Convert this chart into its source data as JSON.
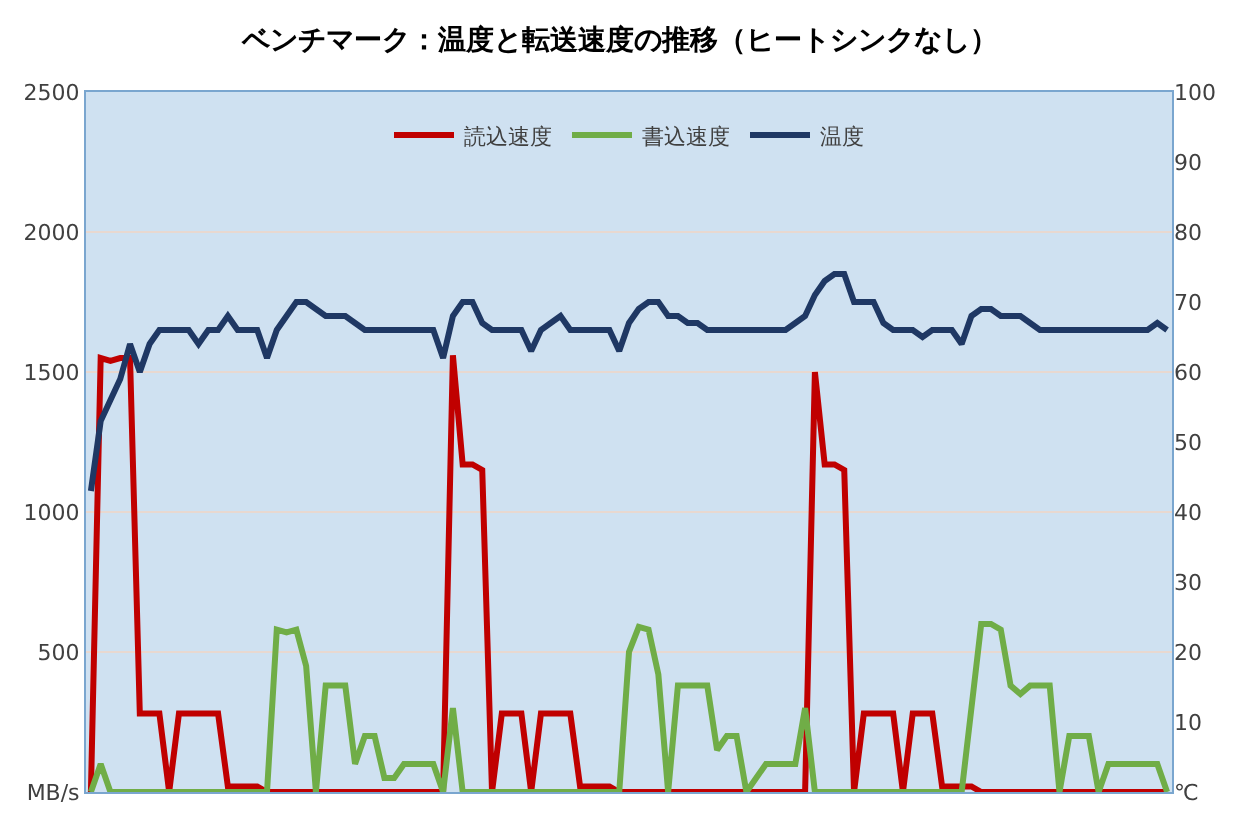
{
  "chart_data": {
    "type": "line",
    "title": "ベンチマーク：温度と転送速度の推移（ヒートシンクなし）",
    "categories": [
      null,
      null,
      null,
      null,
      null,
      null,
      null,
      null,
      null,
      null,
      null,
      null,
      null,
      null,
      null,
      null,
      null,
      null,
      null,
      null,
      null,
      null,
      null,
      null,
      null,
      null,
      null,
      null,
      null,
      null,
      null,
      null,
      null,
      null,
      null,
      null,
      null,
      null,
      null,
      null,
      null,
      null,
      null,
      null,
      null,
      null,
      null,
      null,
      null,
      null,
      null,
      null,
      null,
      null,
      null,
      null,
      null,
      null,
      null,
      null,
      null,
      null,
      null,
      null,
      null,
      null,
      null,
      null,
      null,
      null,
      null,
      null,
      null,
      null,
      null,
      null,
      null,
      null,
      null,
      null,
      null,
      null,
      null,
      null,
      null,
      null,
      null,
      null,
      null,
      null,
      null,
      null,
      null,
      null,
      null,
      null,
      null,
      null,
      null,
      null,
      null,
      null,
      null,
      null,
      null,
      null,
      null,
      null,
      null,
      null,
      null
    ],
    "series": [
      {
        "name": "読込速度",
        "color": "#c00000",
        "values": [
          0,
          1550,
          1540,
          1550,
          1550,
          280,
          280,
          280,
          0,
          280,
          280,
          280,
          280,
          280,
          20,
          20,
          20,
          20,
          0,
          0,
          0,
          0,
          0,
          0,
          0,
          0,
          0,
          0,
          0,
          0,
          0,
          0,
          0,
          0,
          0,
          0,
          0,
          1560,
          1170,
          1170,
          1150,
          0,
          280,
          280,
          280,
          0,
          280,
          280,
          280,
          280,
          20,
          20,
          20,
          20,
          0,
          0,
          0,
          0,
          0,
          0,
          0,
          0,
          0,
          0,
          0,
          0,
          0,
          0,
          0,
          0,
          0,
          0,
          0,
          0,
          1500,
          1170,
          1170,
          1150,
          0,
          280,
          280,
          280,
          280,
          0,
          280,
          280,
          280,
          20,
          20,
          20,
          20,
          0,
          0,
          0,
          0,
          0,
          0,
          0,
          0,
          0,
          0,
          0,
          0,
          0,
          0,
          0,
          0,
          0,
          0,
          0,
          0
        ]
      },
      {
        "name": "書込速度",
        "color": "#70ad47",
        "values": [
          0,
          100,
          0,
          0,
          0,
          0,
          0,
          0,
          0,
          0,
          0,
          0,
          0,
          0,
          0,
          0,
          0,
          0,
          0,
          580,
          570,
          580,
          450,
          0,
          380,
          380,
          380,
          100,
          200,
          200,
          50,
          50,
          100,
          100,
          100,
          100,
          0,
          300,
          0,
          0,
          0,
          0,
          0,
          0,
          0,
          0,
          0,
          0,
          0,
          0,
          0,
          0,
          0,
          0,
          0,
          500,
          590,
          580,
          420,
          0,
          380,
          380,
          380,
          380,
          150,
          200,
          200,
          0,
          50,
          100,
          100,
          100,
          100,
          300,
          0,
          0,
          0,
          0,
          0,
          0,
          0,
          0,
          0,
          0,
          0,
          0,
          0,
          0,
          0,
          0,
          300,
          600,
          600,
          580,
          380,
          350,
          380,
          380,
          380,
          0,
          200,
          200,
          200,
          0,
          100,
          100,
          100,
          100,
          100,
          100,
          0
        ]
      },
      {
        "name": "温度",
        "color": "#1f3864",
        "axis": "y2",
        "values": [
          43,
          53,
          56,
          59,
          64,
          60,
          64,
          66,
          66,
          66,
          66,
          64,
          66,
          66,
          68,
          66,
          66,
          66,
          62,
          66,
          68,
          70,
          70,
          69,
          68,
          68,
          68,
          67,
          66,
          66,
          66,
          66,
          66,
          66,
          66,
          66,
          62,
          68,
          70,
          70,
          67,
          66,
          66,
          66,
          66,
          63,
          66,
          67,
          68,
          66,
          66,
          66,
          66,
          66,
          63,
          67,
          69,
          70,
          70,
          68,
          68,
          67,
          67,
          66,
          66,
          66,
          66,
          66,
          66,
          66,
          66,
          66,
          67,
          68,
          71,
          73,
          74,
          74,
          70,
          70,
          70,
          67,
          66,
          66,
          66,
          65,
          66,
          66,
          66,
          64,
          68,
          69,
          69,
          68,
          68,
          68,
          67,
          66,
          66,
          66,
          66,
          66,
          66,
          66,
          66,
          66,
          66,
          66,
          66,
          67,
          66
        ]
      }
    ],
    "ylim": [
      0,
      2500
    ],
    "yticks": [
      {
        "value": 0,
        "label": "MB/s"
      },
      500,
      1000,
      1500,
      2000,
      2500
    ],
    "y2lim": [
      0,
      100
    ],
    "y2ticks": [
      {
        "value": 0,
        "label": "℃"
      },
      10,
      20,
      30,
      40,
      50,
      60,
      70,
      80,
      90,
      100
    ],
    "grid": "y",
    "legend": "top",
    "marker": "none",
    "line_style": "solid"
  }
}
